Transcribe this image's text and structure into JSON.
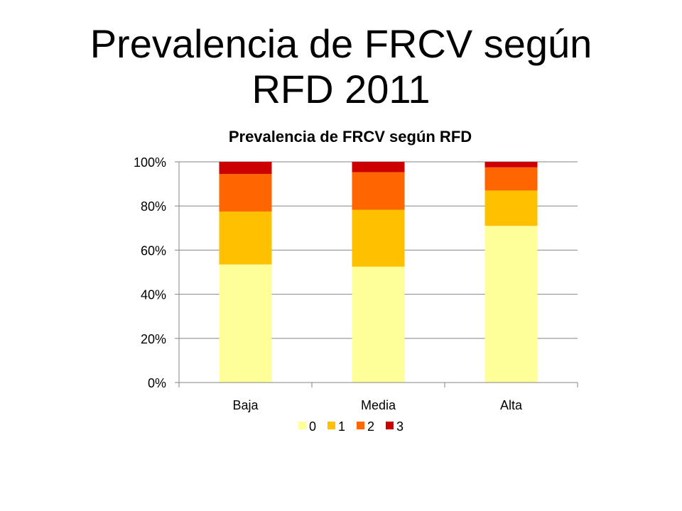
{
  "slide": {
    "title_line1": "Prevalencia de FRCV según",
    "title_line2": "RFD 2011"
  },
  "chart_data": {
    "type": "bar",
    "stacked": true,
    "title": "Prevalencia de FRCV según RFD",
    "categories": [
      "Baja",
      "Media",
      "Alta"
    ],
    "series": [
      {
        "name": "0",
        "values": [
          53.5,
          52.5,
          71
        ],
        "color": "#FFFF99"
      },
      {
        "name": "1",
        "values": [
          24,
          25.8,
          16
        ],
        "color": "#FFC000"
      },
      {
        "name": "2",
        "values": [
          17,
          17,
          10.5
        ],
        "color": "#FF6600"
      },
      {
        "name": "3",
        "values": [
          5.5,
          4.7,
          2.5
        ],
        "color": "#CC0000"
      }
    ],
    "ylim": [
      0,
      100
    ],
    "yticks": [
      "0%",
      "20%",
      "40%",
      "60%",
      "80%",
      "100%"
    ],
    "grid": true,
    "legend_position": "bottom"
  }
}
